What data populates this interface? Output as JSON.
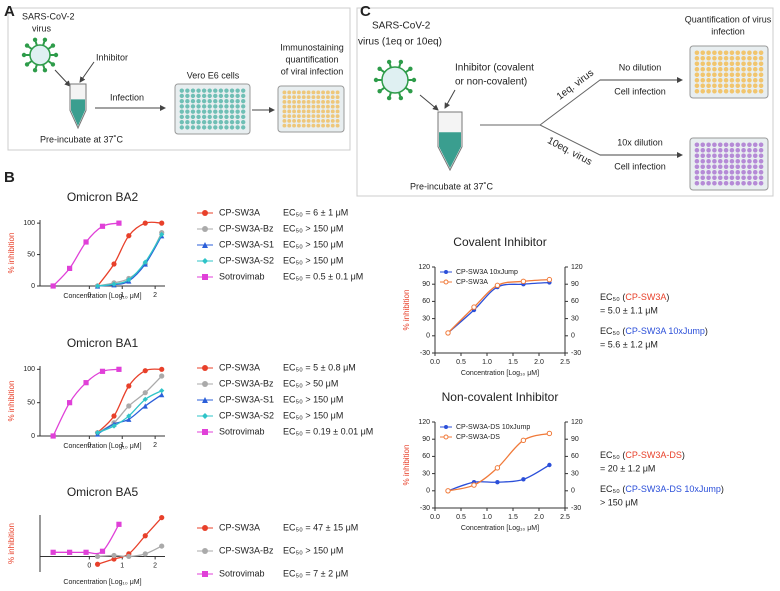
{
  "panel_a": {
    "label": "A",
    "virus_lines": [
      "SARS-CoV-2",
      "virus"
    ],
    "inhibitor": "Inhibitor",
    "infection": "Infection",
    "cells": "Vero E6 cells",
    "readout_lines": [
      "Immunostaining",
      "quantification",
      "of viral infection"
    ],
    "preincubate": "Pre-incubate at 37˚C"
  },
  "panel_b": {
    "label": "B"
  },
  "panel_c": {
    "label": "C",
    "virus_lines": [
      "SARS-CoV-2",
      "virus (1eq or 10eq)"
    ],
    "inhibitor_lines": [
      "Inhibitor (covalent",
      "or non-covalent)"
    ],
    "branch_1eq": "1eq. virus",
    "branch_10eq": "10eq. virus",
    "no_dilution": "No dilution",
    "cell_infection_1": "Cell infection",
    "dilution_10x": "10x dilution",
    "cell_infection_2": "Cell infection",
    "quantification_lines": [
      "Quantification of virus",
      "infection"
    ],
    "preincubate": "Pre-incubate at 37˚C"
  },
  "chart_data": [
    {
      "type": "line",
      "title": "Omicron BA2",
      "x_label": "Concentration [Log₁₀ μM]",
      "y_label": "% inhibition",
      "xlim": [
        -1.5,
        2.3
      ],
      "xticks": [
        0,
        1,
        2
      ],
      "ylim": [
        0,
        105
      ],
      "yticks": [
        0,
        50,
        100
      ],
      "legend": "right",
      "series": [
        {
          "name": "CP-SW3A",
          "ec50": "EC₅₀ = 6 ± 1 μM",
          "color": "#e8402a",
          "marker": "circle",
          "x": [
            0.25,
            0.75,
            1.2,
            1.7,
            2.2
          ],
          "values": [
            0,
            35,
            80,
            100,
            100
          ]
        },
        {
          "name": "CP-SW3A-Bz",
          "ec50": "EC₅₀ > 150 μM",
          "color": "#aaaaaa",
          "marker": "circle",
          "x": [
            0.25,
            0.75,
            1.2,
            1.7,
            2.2
          ],
          "values": [
            0,
            5,
            12,
            35,
            85
          ]
        },
        {
          "name": "CP-SW3A-S1",
          "ec50": "EC₅₀ > 150 μM",
          "color": "#2b5fd9",
          "marker": "triangle",
          "x": [
            0.25,
            0.75,
            1.2,
            1.7,
            2.2
          ],
          "values": [
            0,
            2,
            8,
            35,
            80
          ]
        },
        {
          "name": "CP-SW3A-S2",
          "ec50": "EC₅₀ > 150 μM",
          "color": "#2fc4c8",
          "marker": "diamond",
          "x": [
            0.25,
            0.75,
            1.2,
            1.7,
            2.2
          ],
          "values": [
            0,
            3,
            10,
            38,
            82
          ]
        },
        {
          "name": "Sotrovimab",
          "ec50": "EC₅₀ = 0.5 ± 0.1 μM",
          "color": "#e040d8",
          "marker": "square",
          "x": [
            -1.1,
            -0.6,
            -0.1,
            0.4,
            0.9
          ],
          "values": [
            0,
            28,
            70,
            95,
            100
          ]
        }
      ]
    },
    {
      "type": "line",
      "title": "Omicron BA1",
      "x_label": "Concentration [Log₁₀ μM]",
      "y_label": "% inhibition",
      "xlim": [
        -1.5,
        2.3
      ],
      "xticks": [
        0,
        1,
        2
      ],
      "ylim": [
        0,
        105
      ],
      "yticks": [
        0,
        50,
        100
      ],
      "legend": "right",
      "series": [
        {
          "name": "CP-SW3A",
          "ec50": "EC₅₀ = 5 ± 0.8 μM",
          "color": "#e8402a",
          "marker": "circle",
          "x": [
            0.25,
            0.75,
            1.2,
            1.7,
            2.2
          ],
          "values": [
            5,
            30,
            75,
            98,
            100
          ]
        },
        {
          "name": "CP-SW3A-Bz",
          "ec50": "EC₅₀ > 50 μM",
          "color": "#aaaaaa",
          "marker": "circle",
          "x": [
            0.25,
            0.75,
            1.2,
            1.7,
            2.2
          ],
          "values": [
            5,
            20,
            45,
            65,
            90
          ]
        },
        {
          "name": "CP-SW3A-S1",
          "ec50": "EC₅₀ > 150 μM",
          "color": "#2b5fd9",
          "marker": "triangle",
          "x": [
            0.25,
            0.75,
            1.2,
            1.7,
            2.2
          ],
          "values": [
            3,
            18,
            25,
            45,
            62
          ]
        },
        {
          "name": "CP-SW3A-S2",
          "ec50": "EC₅₀ > 150 μM",
          "color": "#2fc4c8",
          "marker": "diamond",
          "x": [
            0.25,
            0.75,
            1.2,
            1.7,
            2.2
          ],
          "values": [
            5,
            15,
            30,
            55,
            68
          ]
        },
        {
          "name": "Sotrovimab",
          "ec50": "EC₅₀ = 0.19 ± 0.01 μM",
          "color": "#e040d8",
          "marker": "square",
          "x": [
            -1.1,
            -0.6,
            -0.1,
            0.4,
            0.9
          ],
          "values": [
            0,
            50,
            80,
            97,
            100
          ]
        }
      ]
    },
    {
      "type": "line",
      "title": "Omicron BA5",
      "x_label": "Concentration [Log₁₀ μM]",
      "y_label": "% inhibition",
      "xlim": [
        -1.5,
        2.3
      ],
      "xticks": [
        0,
        1,
        2
      ],
      "ylim": [
        -30,
        80
      ],
      "legend": "right",
      "series": [
        {
          "name": "CP-SW3A",
          "ec50": "EC₅₀ = 47 ± 15 μM",
          "color": "#e8402a",
          "marker": "circle",
          "x": [
            0.25,
            0.75,
            1.2,
            1.7,
            2.2
          ],
          "values": [
            -15,
            -5,
            5,
            40,
            75
          ]
        },
        {
          "name": "CP-SW3A-Bz",
          "ec50": "EC₅₀ > 150 μM",
          "color": "#aaaaaa",
          "marker": "circle",
          "x": [
            0.25,
            0.75,
            1.2,
            1.7,
            2.2
          ],
          "values": [
            0,
            2,
            0,
            5,
            20
          ]
        },
        {
          "name": "Sotrovimab",
          "ec50": "EC₅₀ = 7 ± 2 μM",
          "color": "#e040d8",
          "marker": "square",
          "x": [
            -1.1,
            -0.6,
            -0.1,
            0.4,
            0.9
          ],
          "values": [
            8,
            8,
            8,
            10,
            62
          ]
        }
      ]
    },
    {
      "type": "line",
      "title": "Covalent Inhibitor",
      "x_label": "Concentration [Log₁₀ μM]",
      "y_label": "% inhibition",
      "xlim": [
        0,
        2.5
      ],
      "xticks": [
        {
          "value": 0,
          "label": "0.0"
        },
        {
          "value": 0.5,
          "label": "0.5"
        },
        {
          "value": 1,
          "label": "1.0"
        },
        {
          "value": 1.5,
          "label": "1.5"
        },
        {
          "value": 2,
          "label": "2.0"
        },
        {
          "value": 2.5,
          "label": "2.5"
        }
      ],
      "ylim": [
        -30,
        120
      ],
      "yticks": [
        -30,
        0,
        30,
        60,
        90,
        120
      ],
      "y2lim": [
        -30,
        120
      ],
      "y2ticks": [
        -30,
        0,
        30,
        60,
        90,
        120
      ],
      "legend": "upper left",
      "series": [
        {
          "name": "CP-SW3A 10xJump",
          "color": "#2b4fd9",
          "marker": "circle",
          "x": [
            0.25,
            0.75,
            1.2,
            1.7,
            2.2
          ],
          "values": [
            5,
            45,
            85,
            90,
            93
          ]
        },
        {
          "name": "CP-SW3A",
          "color": "#f07a3a",
          "marker": "open-circle",
          "x": [
            0.25,
            0.75,
            1.2,
            1.7,
            2.2
          ],
          "values": [
            5,
            50,
            88,
            95,
            98
          ]
        }
      ],
      "annotations": [
        {
          "prefix": "EC₅₀ (",
          "name": "CP-SW3A",
          "suffix": ")",
          "text": "= 5.0 ± 1.1 μM",
          "color": "#e8402a"
        },
        {
          "prefix": "EC₅₀ (",
          "name": "CP-SW3A 10xJump",
          "suffix": ")",
          "text": "= 5.6 ± 1.2 μM",
          "color": "#2b4fd9"
        }
      ]
    },
    {
      "type": "line",
      "title": "Non-covalent Inhibitor",
      "x_label": "Concentration [Log₁₀ μM]",
      "y_label": "% inhibition",
      "xlim": [
        0,
        2.5
      ],
      "xticks": [
        {
          "value": 0,
          "label": "0.0"
        },
        {
          "value": 0.5,
          "label": "0.5"
        },
        {
          "value": 1,
          "label": "1.0"
        },
        {
          "value": 1.5,
          "label": "1.5"
        },
        {
          "value": 2,
          "label": "2.0"
        },
        {
          "value": 2.5,
          "label": "2.5"
        }
      ],
      "ylim": [
        -30,
        120
      ],
      "yticks": [
        -30,
        0,
        30,
        60,
        90,
        120
      ],
      "y2lim": [
        -30,
        120
      ],
      "y2ticks": [
        -30,
        0,
        30,
        60,
        90,
        120
      ],
      "legend": "upper left",
      "series": [
        {
          "name": "CP-SW3A-DS 10xJump",
          "color": "#2b4fd9",
          "marker": "circle",
          "x": [
            0.25,
            0.75,
            1.2,
            1.7,
            2.2
          ],
          "values": [
            0,
            15,
            15,
            20,
            45
          ]
        },
        {
          "name": "CP-SW3A-DS",
          "color": "#f07a3a",
          "marker": "open-circle",
          "x": [
            0.25,
            0.75,
            1.2,
            1.7,
            2.2
          ],
          "values": [
            0,
            10,
            40,
            88,
            100
          ]
        }
      ],
      "annotations": [
        {
          "prefix": "EC₅₀ (",
          "name": "CP-SW3A-DS",
          "suffix": ")",
          "text": "= 20 ± 1.2 μM",
          "color": "#e8402a"
        },
        {
          "prefix": "EC₅₀ (",
          "name": "CP-SW3A-DS 10xJump",
          "suffix": ")",
          "text": "> 150 μM",
          "color": "#2b4fd9"
        }
      ]
    }
  ]
}
